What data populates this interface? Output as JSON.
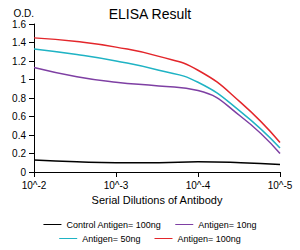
{
  "chart_data": {
    "type": "line",
    "title": "ELISA Result",
    "y_label": "O.D.",
    "x_label": "Serial Dilutions of Antibody",
    "x": [
      0.01,
      0.003,
      0.001,
      0.0003,
      0.0001,
      3e-05,
      1e-05
    ],
    "series": [
      {
        "name": "Control Antigen= 100ng",
        "color": "#000000",
        "values": [
          0.13,
          0.11,
          0.1,
          0.1,
          0.11,
          0.1,
          0.08
        ]
      },
      {
        "name": "Antigen= 10ng",
        "color": "#7e3fa3",
        "values": [
          1.13,
          1.03,
          0.97,
          0.93,
          0.88,
          0.6,
          0.2
        ]
      },
      {
        "name": "Antigen= 50ng",
        "color": "#1fb3c4",
        "values": [
          1.33,
          1.27,
          1.2,
          1.1,
          0.97,
          0.65,
          0.26
        ]
      },
      {
        "name": "Antigen= 100ng",
        "color": "#e3262b",
        "values": [
          1.45,
          1.41,
          1.35,
          1.25,
          1.1,
          0.75,
          0.32
        ]
      }
    ],
    "xlim": [
      0.01,
      1e-05
    ],
    "xticks": [
      {
        "value": 0.01,
        "label": "10^-2"
      },
      {
        "value": 0.001,
        "label": "10^-3"
      },
      {
        "value": 0.0001,
        "label": "10^-4"
      },
      {
        "value": 1e-05,
        "label": "10^-5"
      }
    ],
    "ylim": [
      0,
      1.6
    ],
    "yticks": [
      0,
      0.2,
      0.4,
      0.6,
      0.8,
      1,
      1.2,
      1.4,
      1.6
    ],
    "log": "x",
    "grid": false,
    "legend": "bottom",
    "marker": "none"
  }
}
